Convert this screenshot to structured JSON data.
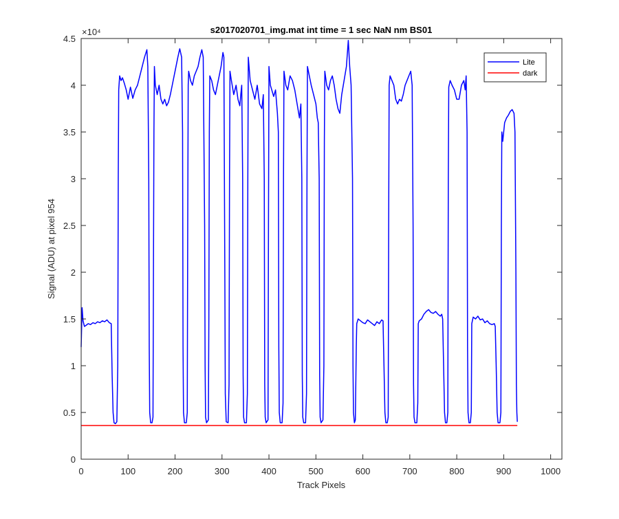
{
  "chart_data": {
    "type": "line",
    "title": "s2017020701_img.mat int time = 1 sec  NaN nm BS01",
    "xlabel": "Track Pixels",
    "ylabel": "Signal (ADU) at pixel 954",
    "y_exponent_label": "×10⁴",
    "y_scale_factor": 10000,
    "xlim": [
      0,
      1024
    ],
    "ylim": [
      0,
      45000
    ],
    "x_ticks": [
      0,
      100,
      200,
      300,
      400,
      500,
      600,
      700,
      800,
      900,
      1000
    ],
    "x_tick_labels": [
      "0",
      "100",
      "200",
      "300",
      "400",
      "500",
      "600",
      "700",
      "800",
      "900",
      "1000"
    ],
    "y_ticks": [
      0,
      5000,
      10000,
      15000,
      20000,
      25000,
      30000,
      35000,
      40000,
      45000
    ],
    "y_tick_labels": [
      "0",
      "0.5",
      "1",
      "1.5",
      "2",
      "2.5",
      "3",
      "3.5",
      "4",
      "4.5"
    ],
    "grid": false,
    "legend_position": "top-right",
    "series": [
      {
        "name": "Lite",
        "color": "#0000FF",
        "points": [
          [
            0,
            12000
          ],
          [
            2,
            16200
          ],
          [
            4,
            14800
          ],
          [
            7,
            14200
          ],
          [
            10,
            14300
          ],
          [
            15,
            14500
          ],
          [
            20,
            14400
          ],
          [
            25,
            14600
          ],
          [
            30,
            14500
          ],
          [
            35,
            14700
          ],
          [
            40,
            14600
          ],
          [
            45,
            14800
          ],
          [
            50,
            14700
          ],
          [
            55,
            14900
          ],
          [
            60,
            14600
          ],
          [
            64,
            14500
          ],
          [
            66,
            9000
          ],
          [
            68,
            5000
          ],
          [
            70,
            3900
          ],
          [
            73,
            3800
          ],
          [
            76,
            4000
          ],
          [
            78,
            10000
          ],
          [
            79,
            30000
          ],
          [
            80,
            39500
          ],
          [
            82,
            41000
          ],
          [
            85,
            40500
          ],
          [
            88,
            40800
          ],
          [
            92,
            40200
          ],
          [
            96,
            39500
          ],
          [
            100,
            38500
          ],
          [
            105,
            39800
          ],
          [
            110,
            38600
          ],
          [
            115,
            39500
          ],
          [
            120,
            40000
          ],
          [
            125,
            41000
          ],
          [
            130,
            42000
          ],
          [
            135,
            43000
          ],
          [
            140,
            43800
          ],
          [
            142,
            42000
          ],
          [
            144,
            30000
          ],
          [
            145,
            12000
          ],
          [
            146,
            5000
          ],
          [
            148,
            3900
          ],
          [
            151,
            3900
          ],
          [
            153,
            4500
          ],
          [
            154,
            20000
          ],
          [
            155,
            35000
          ],
          [
            156,
            42000
          ],
          [
            158,
            40000
          ],
          [
            162,
            39000
          ],
          [
            166,
            40000
          ],
          [
            170,
            38500
          ],
          [
            174,
            38000
          ],
          [
            178,
            38500
          ],
          [
            182,
            37800
          ],
          [
            186,
            38200
          ],
          [
            190,
            39000
          ],
          [
            194,
            40000
          ],
          [
            198,
            41000
          ],
          [
            202,
            42000
          ],
          [
            206,
            43000
          ],
          [
            210,
            43900
          ],
          [
            214,
            43000
          ],
          [
            216,
            35000
          ],
          [
            217,
            12000
          ],
          [
            218,
            5000
          ],
          [
            220,
            3900
          ],
          [
            224,
            3900
          ],
          [
            226,
            5000
          ],
          [
            227,
            25000
          ],
          [
            228,
            40000
          ],
          [
            229,
            41500
          ],
          [
            233,
            40500
          ],
          [
            237,
            40000
          ],
          [
            241,
            41000
          ],
          [
            245,
            41500
          ],
          [
            249,
            42000
          ],
          [
            253,
            43000
          ],
          [
            257,
            43800
          ],
          [
            260,
            43000
          ],
          [
            263,
            25000
          ],
          [
            264,
            10000
          ],
          [
            265,
            4500
          ],
          [
            267,
            3900
          ],
          [
            271,
            4200
          ],
          [
            272,
            15000
          ],
          [
            273,
            35000
          ],
          [
            274,
            41000
          ],
          [
            278,
            40500
          ],
          [
            282,
            39500
          ],
          [
            286,
            39000
          ],
          [
            290,
            40000
          ],
          [
            294,
            41000
          ],
          [
            298,
            42000
          ],
          [
            302,
            43500
          ],
          [
            304,
            43000
          ],
          [
            306,
            20000
          ],
          [
            307,
            7000
          ],
          [
            309,
            4000
          ],
          [
            313,
            3900
          ],
          [
            315,
            8000
          ],
          [
            316,
            30000
          ],
          [
            317,
            41500
          ],
          [
            320,
            40500
          ],
          [
            325,
            39000
          ],
          [
            330,
            40000
          ],
          [
            334,
            38500
          ],
          [
            338,
            37800
          ],
          [
            340,
            39000
          ],
          [
            342,
            40000
          ],
          [
            344,
            30000
          ],
          [
            345,
            9000
          ],
          [
            346,
            4500
          ],
          [
            348,
            3900
          ],
          [
            352,
            3900
          ],
          [
            354,
            7000
          ],
          [
            355,
            30000
          ],
          [
            356,
            43000
          ],
          [
            360,
            40500
          ],
          [
            365,
            39500
          ],
          [
            370,
            38500
          ],
          [
            375,
            40000
          ],
          [
            380,
            38000
          ],
          [
            385,
            37500
          ],
          [
            388,
            39000
          ],
          [
            390,
            30000
          ],
          [
            391,
            8000
          ],
          [
            392,
            4500
          ],
          [
            394,
            3900
          ],
          [
            398,
            4200
          ],
          [
            399,
            25000
          ],
          [
            400,
            42000
          ],
          [
            403,
            40000
          ],
          [
            406,
            39500
          ],
          [
            410,
            38800
          ],
          [
            414,
            39500
          ],
          [
            418,
            37000
          ],
          [
            420,
            35000
          ],
          [
            421,
            12000
          ],
          [
            422,
            5000
          ],
          [
            424,
            3900
          ],
          [
            428,
            3900
          ],
          [
            430,
            6000
          ],
          [
            431,
            30000
          ],
          [
            432,
            41500
          ],
          [
            436,
            40000
          ],
          [
            440,
            39500
          ],
          [
            445,
            41000
          ],
          [
            450,
            40500
          ],
          [
            455,
            39500
          ],
          [
            460,
            38000
          ],
          [
            465,
            36500
          ],
          [
            468,
            38000
          ],
          [
            470,
            30000
          ],
          [
            471,
            9000
          ],
          [
            472,
            4500
          ],
          [
            474,
            3900
          ],
          [
            478,
            3900
          ],
          [
            480,
            7000
          ],
          [
            481,
            30000
          ],
          [
            482,
            42000
          ],
          [
            486,
            41000
          ],
          [
            490,
            40000
          ],
          [
            495,
            39000
          ],
          [
            500,
            38000
          ],
          [
            503,
            36500
          ],
          [
            505,
            36000
          ],
          [
            507,
            30000
          ],
          [
            508,
            9000
          ],
          [
            509,
            4500
          ],
          [
            511,
            3900
          ],
          [
            515,
            4200
          ],
          [
            517,
            10000
          ],
          [
            518,
            34000
          ],
          [
            519,
            41500
          ],
          [
            523,
            40000
          ],
          [
            527,
            39500
          ],
          [
            531,
            40500
          ],
          [
            535,
            41000
          ],
          [
            539,
            40000
          ],
          [
            543,
            38500
          ],
          [
            547,
            37500
          ],
          [
            551,
            37000
          ],
          [
            555,
            39000
          ],
          [
            560,
            40500
          ],
          [
            565,
            42000
          ],
          [
            569,
            44800
          ],
          [
            572,
            42000
          ],
          [
            575,
            40000
          ],
          [
            578,
            30000
          ],
          [
            579,
            10000
          ],
          [
            580,
            5000
          ],
          [
            582,
            3900
          ],
          [
            584,
            4200
          ],
          [
            586,
            12000
          ],
          [
            587,
            14500
          ],
          [
            590,
            15000
          ],
          [
            595,
            14800
          ],
          [
            600,
            14600
          ],
          [
            605,
            14500
          ],
          [
            610,
            14900
          ],
          [
            615,
            14700
          ],
          [
            620,
            14500
          ],
          [
            625,
            14300
          ],
          [
            630,
            14700
          ],
          [
            635,
            14500
          ],
          [
            640,
            14900
          ],
          [
            643,
            14800
          ],
          [
            645,
            10000
          ],
          [
            647,
            5000
          ],
          [
            649,
            3900
          ],
          [
            652,
            3900
          ],
          [
            654,
            4500
          ],
          [
            655,
            25000
          ],
          [
            656,
            40000
          ],
          [
            658,
            41000
          ],
          [
            662,
            40500
          ],
          [
            666,
            40000
          ],
          [
            670,
            38500
          ],
          [
            674,
            38000
          ],
          [
            678,
            38500
          ],
          [
            682,
            38300
          ],
          [
            686,
            39000
          ],
          [
            690,
            40000
          ],
          [
            694,
            40500
          ],
          [
            698,
            41000
          ],
          [
            702,
            41500
          ],
          [
            705,
            40000
          ],
          [
            707,
            25000
          ],
          [
            708,
            8000
          ],
          [
            709,
            4500
          ],
          [
            711,
            3900
          ],
          [
            715,
            3900
          ],
          [
            717,
            6000
          ],
          [
            718,
            14500
          ],
          [
            720,
            14800
          ],
          [
            725,
            15000
          ],
          [
            730,
            15500
          ],
          [
            735,
            15800
          ],
          [
            740,
            16000
          ],
          [
            745,
            15700
          ],
          [
            750,
            15600
          ],
          [
            755,
            15800
          ],
          [
            760,
            15500
          ],
          [
            765,
            15300
          ],
          [
            768,
            15500
          ],
          [
            770,
            15000
          ],
          [
            772,
            10000
          ],
          [
            774,
            5000
          ],
          [
            776,
            3900
          ],
          [
            779,
            3900
          ],
          [
            781,
            5000
          ],
          [
            782,
            30000
          ],
          [
            783,
            39800
          ],
          [
            786,
            40500
          ],
          [
            790,
            40000
          ],
          [
            795,
            39500
          ],
          [
            800,
            38500
          ],
          [
            805,
            38500
          ],
          [
            810,
            40000
          ],
          [
            815,
            40500
          ],
          [
            818,
            39500
          ],
          [
            820,
            41000
          ],
          [
            822,
            35000
          ],
          [
            823,
            12000
          ],
          [
            824,
            5000
          ],
          [
            826,
            3900
          ],
          [
            829,
            3900
          ],
          [
            831,
            5000
          ],
          [
            832,
            14500
          ],
          [
            835,
            15200
          ],
          [
            840,
            15000
          ],
          [
            845,
            15300
          ],
          [
            850,
            14900
          ],
          [
            855,
            15000
          ],
          [
            860,
            14600
          ],
          [
            865,
            14800
          ],
          [
            870,
            14500
          ],
          [
            875,
            14400
          ],
          [
            880,
            14500
          ],
          [
            882,
            14200
          ],
          [
            884,
            10000
          ],
          [
            886,
            5000
          ],
          [
            888,
            3900
          ],
          [
            892,
            3900
          ],
          [
            894,
            5000
          ],
          [
            895,
            25000
          ],
          [
            896,
            35000
          ],
          [
            898,
            34000
          ],
          [
            902,
            36000
          ],
          [
            906,
            36500
          ],
          [
            910,
            36800
          ],
          [
            914,
            37200
          ],
          [
            918,
            37400
          ],
          [
            922,
            37000
          ],
          [
            924,
            35000
          ],
          [
            926,
            20000
          ],
          [
            927,
            8000
          ],
          [
            928,
            5000
          ],
          [
            929,
            4000
          ]
        ]
      },
      {
        "name": "dark",
        "color": "#FF0000",
        "points": [
          [
            0,
            3600
          ],
          [
            929,
            3600
          ]
        ]
      }
    ]
  }
}
